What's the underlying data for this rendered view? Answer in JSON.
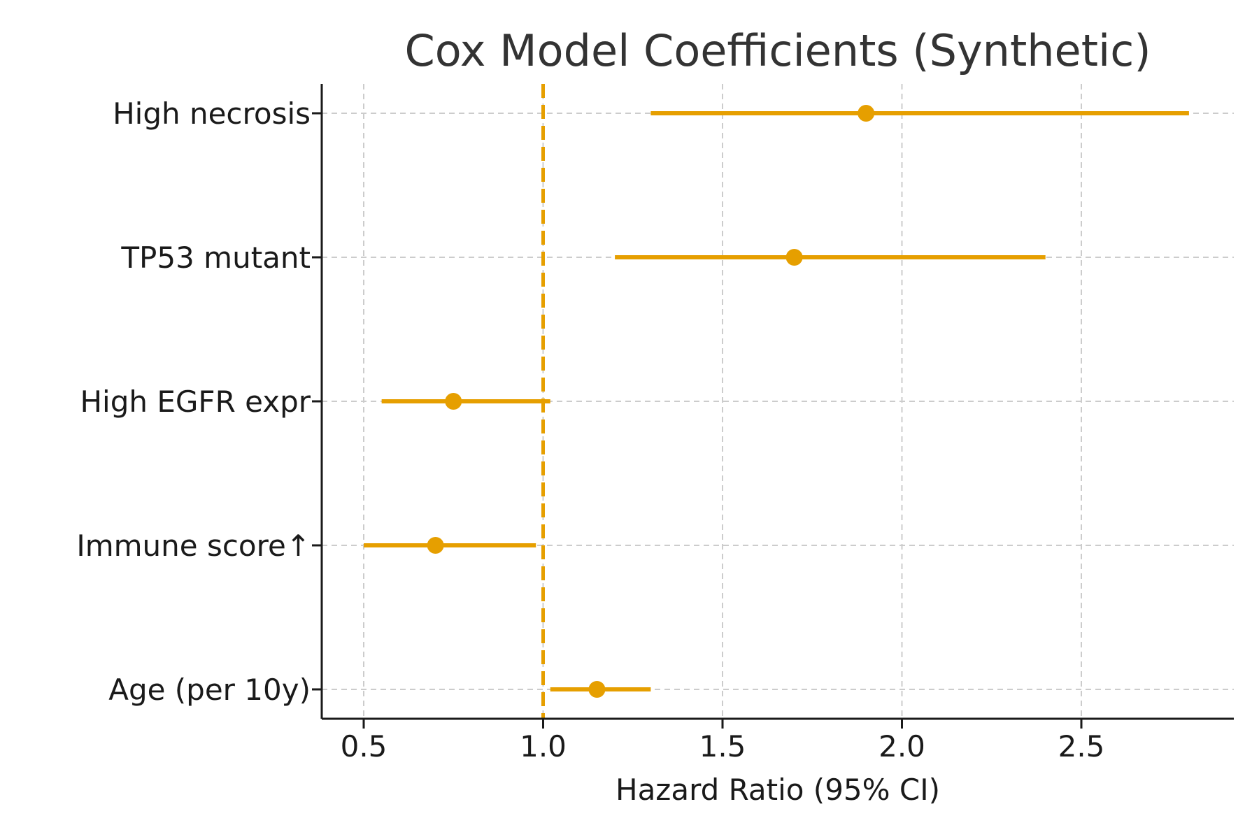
{
  "chart_data": {
    "type": "forest",
    "title": "Cox Model Coefficients (Synthetic)",
    "xlabel": "Hazard Ratio (95% CI)",
    "ylabel": "",
    "xlim": [
      0.38,
      2.9
    ],
    "xticks": [
      "0.5",
      "1.0",
      "1.5",
      "2.0",
      "2.5"
    ],
    "xtick_values": [
      0.5,
      1.0,
      1.5,
      2.0,
      2.5
    ],
    "reference_line": 1.0,
    "grid": true,
    "color": "#E69F00",
    "categories": [
      "High necrosis",
      "TP53 mutant",
      "High EGFR expr",
      "Immune score↑",
      "Age (per 10y)"
    ],
    "hr": [
      1.9,
      1.7,
      0.75,
      0.7,
      1.15
    ],
    "ci_low": [
      1.3,
      1.2,
      0.55,
      0.5,
      1.02
    ],
    "ci_high": [
      2.8,
      2.4,
      1.02,
      0.98,
      1.3
    ]
  }
}
